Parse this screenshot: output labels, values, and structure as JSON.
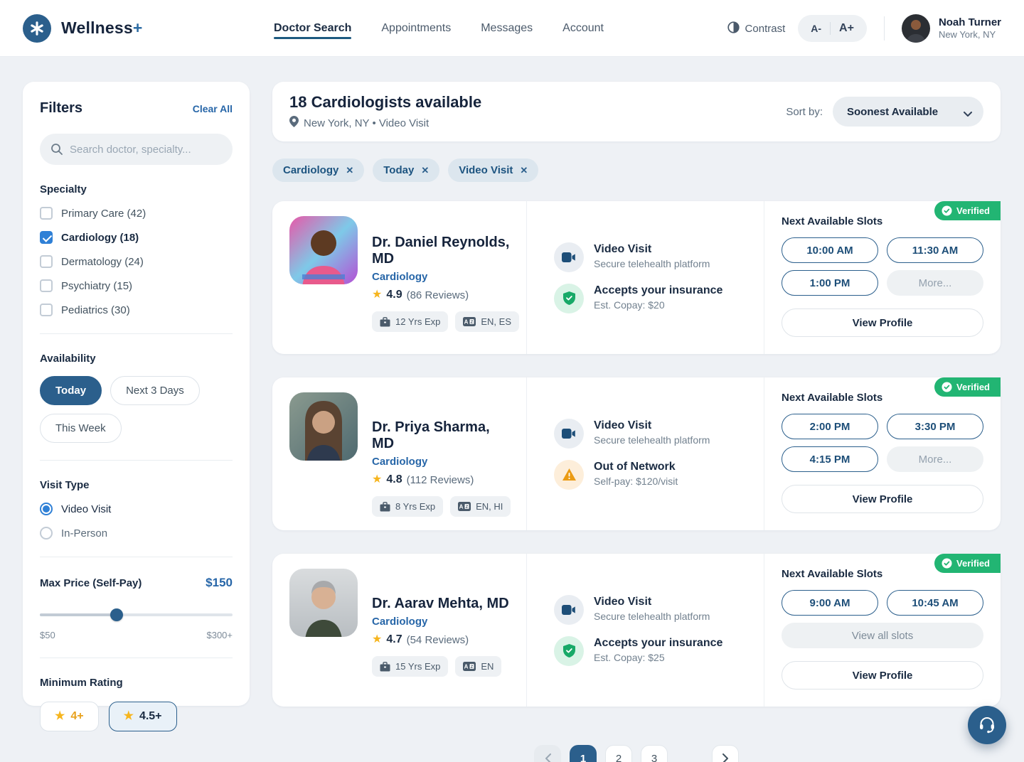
{
  "header": {
    "brand": {
      "name": "Wellness",
      "plus": "+"
    },
    "nav": [
      {
        "label": "Doctor Search",
        "active": true
      },
      {
        "label": "Appointments",
        "active": false
      },
      {
        "label": "Messages",
        "active": false
      },
      {
        "label": "Account",
        "active": false
      }
    ],
    "contrast_label": "Contrast",
    "font_smaller": "A-",
    "font_larger": "A+",
    "user": {
      "name": "Noah Turner",
      "location": "New York, NY"
    }
  },
  "filters": {
    "title": "Filters",
    "clear_all": "Clear All",
    "search_placeholder": "Search doctor, specialty...",
    "specialty": {
      "label": "Specialty",
      "options": [
        {
          "label": "Primary Care (42)",
          "checked": false
        },
        {
          "label": "Cardiology (18)",
          "checked": true
        },
        {
          "label": "Dermatology (24)",
          "checked": false
        },
        {
          "label": "Psychiatry (15)",
          "checked": false
        },
        {
          "label": "Pediatrics (30)",
          "checked": false
        }
      ]
    },
    "availability": {
      "label": "Availability",
      "options": [
        {
          "label": "Today",
          "selected": true
        },
        {
          "label": "Next 3 Days",
          "selected": false
        },
        {
          "label": "This Week",
          "selected": false
        }
      ]
    },
    "visit_type": {
      "label": "Visit Type",
      "options": [
        {
          "label": "Video Visit",
          "selected": true
        },
        {
          "label": "In-Person",
          "selected": false
        }
      ]
    },
    "max_price": {
      "label": "Max Price (Self-Pay)",
      "value": "$150",
      "min": "$50",
      "max": "$300+",
      "percent": 40
    },
    "min_rating": {
      "label": "Minimum Rating",
      "options": [
        {
          "label": "4+",
          "selected": false
        },
        {
          "label": "4.5+",
          "selected": true
        }
      ]
    }
  },
  "results": {
    "count_title": "18 Cardiologists available",
    "subtitle": "New York, NY • Video Visit",
    "sort_label": "Sort by:",
    "sort_value": "Soonest Available",
    "chips": [
      "Cardiology",
      "Today",
      "Video Visit"
    ],
    "cards": [
      {
        "name": "Dr. Daniel Reynolds, MD",
        "specialty": "Cardiology",
        "rating": "4.9",
        "reviews": "(86 Reviews)",
        "experience": "12 Yrs Exp",
        "languages": "EN, ES",
        "photo": "portrait-man-colorful-mural",
        "visit": {
          "title": "Video Visit",
          "subtitle": "Secure telehealth platform"
        },
        "insurance": {
          "type": "in-network",
          "title": "Accepts your insurance",
          "subtitle": "Est. Copay: $20"
        },
        "verified_label": "Verified",
        "slots_label": "Next Available Slots",
        "slots": [
          "10:00 AM",
          "11:30 AM",
          "1:00 PM"
        ],
        "more_label": "More...",
        "view_profile_label": "View Profile"
      },
      {
        "name": "Dr. Priya Sharma, MD",
        "specialty": "Cardiology",
        "rating": "4.8",
        "reviews": "(112 Reviews)",
        "experience": "8 Yrs Exp",
        "languages": "EN, HI",
        "photo": "portrait-woman-brown-hair",
        "visit": {
          "title": "Video Visit",
          "subtitle": "Secure telehealth platform"
        },
        "insurance": {
          "type": "out-of-network",
          "title": "Out of Network",
          "subtitle": "Self-pay: $120/visit"
        },
        "verified_label": "Verified",
        "slots_label": "Next Available Slots",
        "slots": [
          "2:00 PM",
          "3:30 PM",
          "4:15 PM"
        ],
        "more_label": "More...",
        "view_profile_label": "View Profile"
      },
      {
        "name": "Dr. Aarav Mehta, MD",
        "specialty": "Cardiology",
        "rating": "4.7",
        "reviews": "(54 Reviews)",
        "experience": "15 Yrs Exp",
        "languages": "EN",
        "photo": "portrait-gray-haired-man",
        "visit": {
          "title": "Video Visit",
          "subtitle": "Secure telehealth platform"
        },
        "insurance": {
          "type": "in-network",
          "title": "Accepts your insurance",
          "subtitle": "Est. Copay: $25"
        },
        "verified_label": "Verified",
        "slots_label": "Next Available Slots",
        "slots": [
          "9:00 AM",
          "10:45 AM"
        ],
        "view_all_label": "View all slots",
        "view_profile_label": "View Profile"
      }
    ]
  },
  "pagination": {
    "pages": [
      "1",
      "2",
      "3"
    ],
    "active": "1"
  },
  "icons": {
    "logo": "asterisk-medical",
    "fab": "headset-support",
    "colors": {
      "primary": "#2b5f8c",
      "link_blue": "#2766a8",
      "checkbox_blue": "#2f80d6",
      "verified_green": "#22b573",
      "warning_orange": "#eb9b13",
      "star_gold": "#f6b51e"
    }
  }
}
